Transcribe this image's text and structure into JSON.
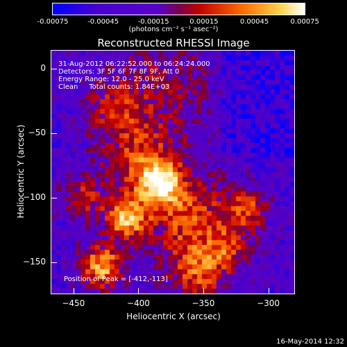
{
  "colorbar": {
    "ticks": [
      "-0.00075",
      "-0.00045",
      "-0.00015",
      "0.00015",
      "0.00045",
      "0.00075"
    ],
    "units": "(photons cm⁻² s⁻¹ asec⁻²)",
    "range": [
      -0.00075,
      0.00075
    ],
    "colors": [
      "#0000ff",
      "#5a00c8",
      "#5a00c8",
      "#c80000",
      "#ff7800",
      "#ffff96",
      "#ffffff"
    ]
  },
  "title": "Reconstructed RHESSI Image",
  "info": {
    "time_range": "31-Aug-2012 06:22:52.000 to 06:24:24.000",
    "detectors": "Detectors: 3F 5F 6F 7F 8F 9F, Att 0",
    "energy": "Energy Range: 12.0 - 25.0 keV",
    "clean": "Clean     Total counts: 1.84E+03"
  },
  "peak": "Position of Peak = [-412,-113]",
  "axes": {
    "xlabel": "Heliocentric X (arcsec)",
    "ylabel": "Heliocentric Y (arcsec)",
    "xrange": [
      -467,
      -280
    ],
    "yrange": [
      -174,
      14
    ],
    "xticks": [
      {
        "value": -450,
        "label": "−450"
      },
      {
        "value": -400,
        "label": "−400"
      },
      {
        "value": -350,
        "label": "−350"
      },
      {
        "value": -300,
        "label": "−300"
      }
    ],
    "yticks": [
      {
        "value": 0,
        "label": "0"
      },
      {
        "value": -50,
        "label": "−50"
      },
      {
        "value": -100,
        "label": "−100"
      },
      {
        "value": -150,
        "label": "−150"
      }
    ]
  },
  "footer": {
    "date": "16-May-2014 12:32"
  }
}
